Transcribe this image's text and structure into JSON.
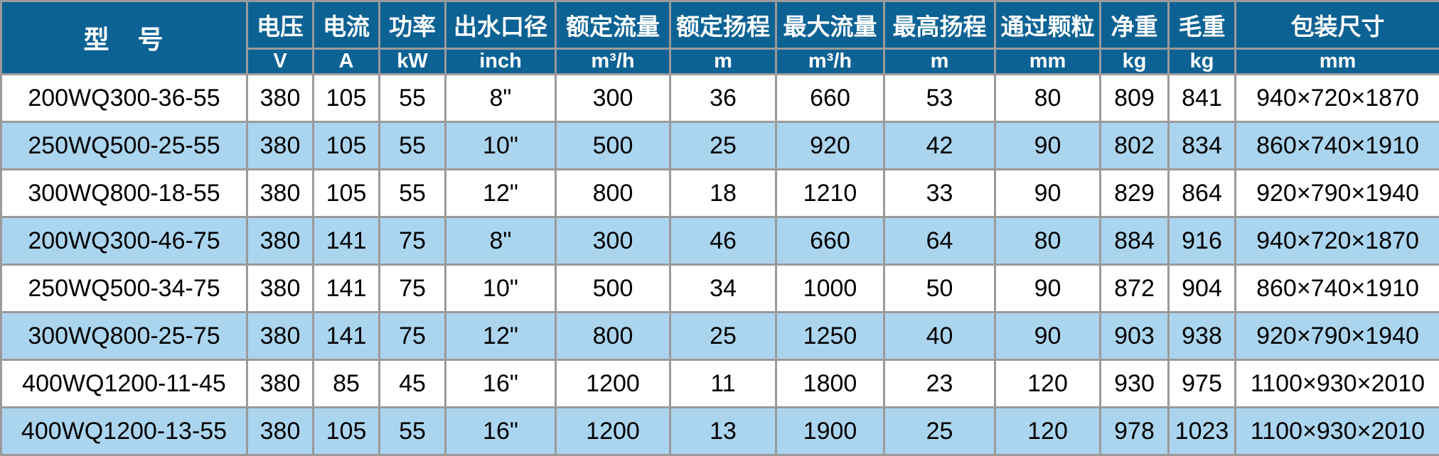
{
  "table": {
    "title": "submersible-sewage-pump-specifications",
    "column_keys": [
      "model",
      "voltage",
      "current",
      "power",
      "outlet_diameter",
      "rated_flow",
      "rated_head",
      "max_flow",
      "max_head",
      "particle_passage",
      "net_weight",
      "gross_weight",
      "package_size"
    ],
    "columns": [
      {
        "label": "型　号",
        "unit": ""
      },
      {
        "label": "电压",
        "unit": "V"
      },
      {
        "label": "电流",
        "unit": "A"
      },
      {
        "label": "功率",
        "unit": "kW"
      },
      {
        "label": "出水口径",
        "unit": "inch"
      },
      {
        "label": "额定流量",
        "unit": "m³/h"
      },
      {
        "label": "额定扬程",
        "unit": "m"
      },
      {
        "label": "最大流量",
        "unit": "m³/h"
      },
      {
        "label": "最高扬程",
        "unit": "m"
      },
      {
        "label": "通过颗粒",
        "unit": "mm"
      },
      {
        "label": "净重",
        "unit": "kg"
      },
      {
        "label": "毛重",
        "unit": "kg"
      },
      {
        "label": "包装尺寸",
        "unit": "mm"
      }
    ],
    "rows": [
      [
        "200WQ300-36-55",
        "380",
        "105",
        "55",
        "8\"",
        "300",
        "36",
        "660",
        "53",
        "80",
        "809",
        "841",
        "940×720×1870"
      ],
      [
        "250WQ500-25-55",
        "380",
        "105",
        "55",
        "10\"",
        "500",
        "25",
        "920",
        "42",
        "90",
        "802",
        "834",
        "860×740×1910"
      ],
      [
        "300WQ800-18-55",
        "380",
        "105",
        "55",
        "12\"",
        "800",
        "18",
        "1210",
        "33",
        "90",
        "829",
        "864",
        "920×790×1940"
      ],
      [
        "200WQ300-46-75",
        "380",
        "141",
        "75",
        "8\"",
        "300",
        "46",
        "660",
        "64",
        "80",
        "884",
        "916",
        "940×720×1870"
      ],
      [
        "250WQ500-34-75",
        "380",
        "141",
        "75",
        "10\"",
        "500",
        "34",
        "1000",
        "50",
        "90",
        "872",
        "904",
        "860×740×1910"
      ],
      [
        "300WQ800-25-75",
        "380",
        "141",
        "75",
        "12\"",
        "800",
        "25",
        "1250",
        "40",
        "90",
        "903",
        "938",
        "920×790×1940"
      ],
      [
        "400WQ1200-11-45",
        "380",
        "85",
        "45",
        "16\"",
        "1200",
        "11",
        "1800",
        "23",
        "120",
        "930",
        "975",
        "1100×930×2010"
      ],
      [
        "400WQ1200-13-55",
        "380",
        "105",
        "55",
        "16\"",
        "1200",
        "13",
        "1900",
        "25",
        "120",
        "978",
        "1023",
        "1100×930×2010"
      ]
    ],
    "colors": {
      "header_bg": "#0d6294",
      "header_text": "#ffffff",
      "row_bg": "#ffffff",
      "row_alt_bg": "#abd5ef",
      "grid_line": "#9a9a9a",
      "body_text": "#000000"
    }
  }
}
